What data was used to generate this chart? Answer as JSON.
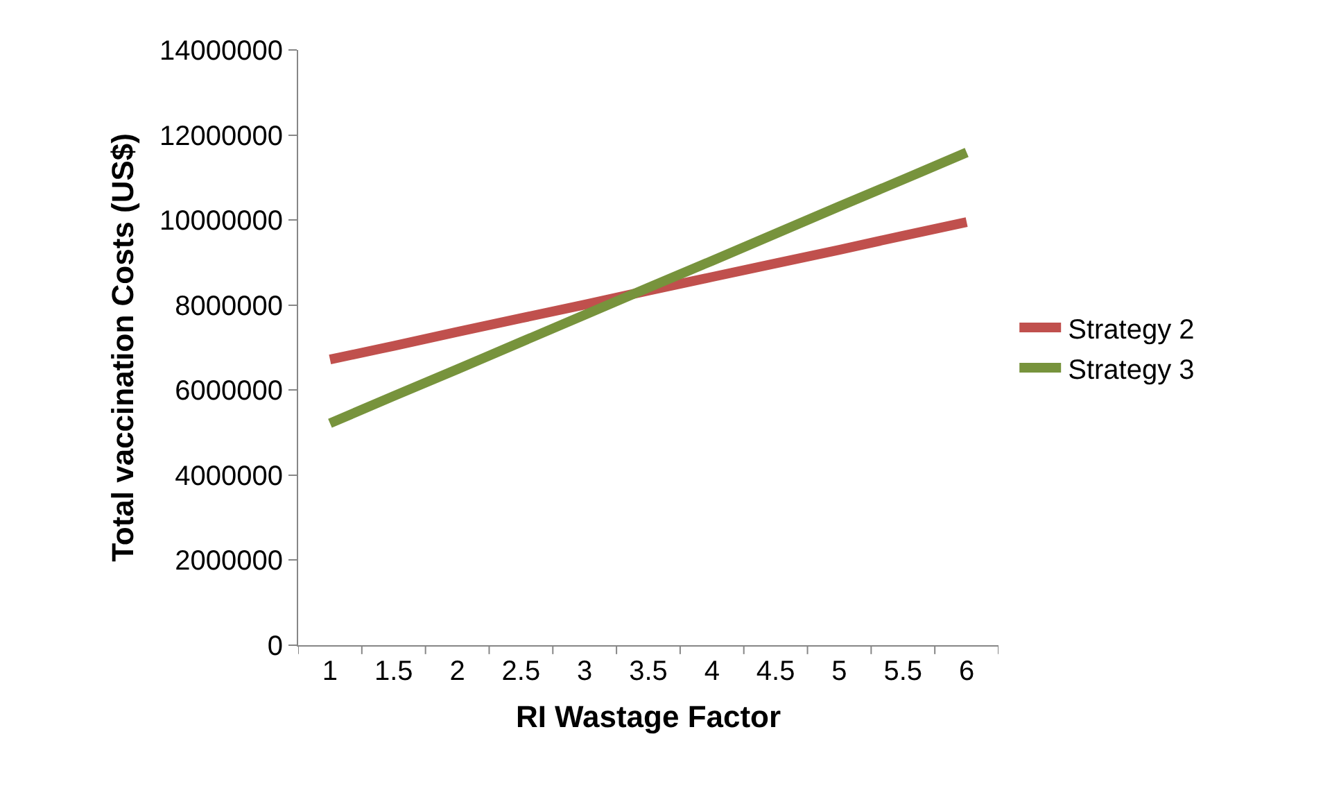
{
  "chart_data": {
    "type": "line",
    "xlabel": "RI Wastage Factor",
    "ylabel": "Total vaccination Costs (US$)",
    "categories": [
      "1",
      "1.5",
      "2",
      "2.5",
      "3",
      "3.5",
      "4",
      "4.5",
      "5",
      "5.5",
      "6"
    ],
    "series": [
      {
        "name": "Strategy 2",
        "color": "#c0504d",
        "values": [
          6720000,
          7040000,
          7370000,
          7690000,
          8010000,
          8340000,
          8660000,
          8980000,
          9300000,
          9630000,
          9950000
        ]
      },
      {
        "name": "Strategy 3",
        "color": "#77933c",
        "values": [
          5220000,
          5860000,
          6490000,
          7130000,
          7770000,
          8410000,
          9040000,
          9680000,
          10320000,
          10950000,
          11590000
        ]
      }
    ],
    "ylim": [
      0,
      14000000
    ],
    "yticks": [
      0,
      2000000,
      4000000,
      6000000,
      8000000,
      10000000,
      12000000,
      14000000
    ],
    "grid": false,
    "legend": "right",
    "marker": "none",
    "line_style": "solid"
  }
}
